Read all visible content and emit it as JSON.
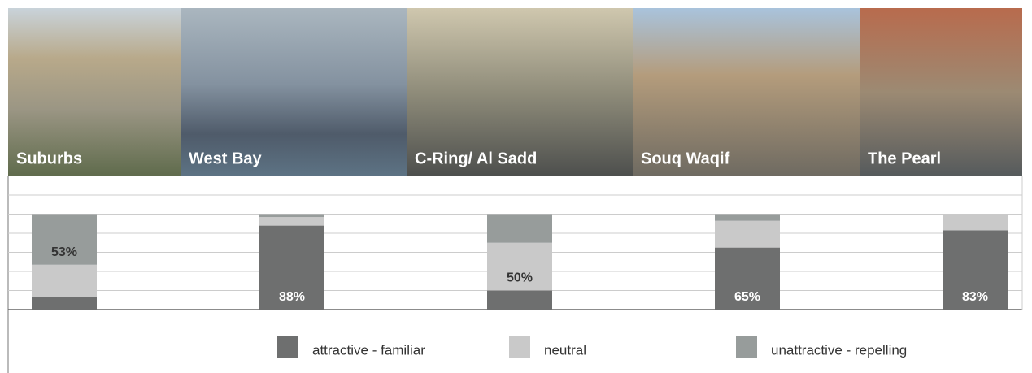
{
  "chart_data": {
    "type": "stacked-bar",
    "categories": [
      "Suburbs",
      "West Bay",
      "C-Ring/ Al Sadd",
      "Souq Waqif",
      "The Pearl"
    ],
    "series": [
      {
        "name": "attractive - familiar",
        "color": "#6e6f6f",
        "values": [
          13,
          88,
          20,
          65,
          83
        ],
        "value_labels": [
          null,
          "88%",
          null,
          "65%",
          "83%"
        ]
      },
      {
        "name": "neutral",
        "color": "#c9c9c9",
        "values": [
          34,
          9,
          50,
          28,
          17
        ],
        "value_labels": [
          null,
          null,
          "50%",
          null,
          null
        ]
      },
      {
        "name": "unattractive - repelling",
        "color": "#979c9b",
        "values": [
          53,
          3,
          30,
          7,
          0
        ],
        "value_labels": [
          "53%",
          null,
          null,
          null,
          null
        ]
      }
    ],
    "ylim": [
      0,
      120
    ],
    "yticks": [
      0,
      20,
      40,
      60,
      80,
      100,
      120
    ],
    "grid": true
  }
}
